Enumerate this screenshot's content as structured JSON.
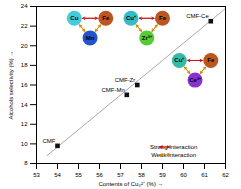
{
  "chart_data": {
    "type": "scatter",
    "xlabel": "Contents of Cu₀²⁺ (%)",
    "ylabel": "Alcohols selectivity (%)",
    "xlim": [
      53,
      62
    ],
    "ylim": [
      8,
      24
    ],
    "xticks": [
      53,
      54,
      55,
      56,
      57,
      58,
      59,
      60,
      61,
      62
    ],
    "yticks": [
      8,
      10,
      12,
      14,
      16,
      18,
      20,
      22,
      24
    ],
    "grid": false,
    "series": [
      {
        "type": "line",
        "color": "#aaaaaa",
        "x": [
          53.5,
          62.0
        ],
        "values": [
          8.8,
          23.8
        ]
      },
      {
        "type": "scatter",
        "color": "#111111",
        "marker": "square",
        "x": [
          54.0,
          57.3,
          57.8,
          61.3
        ],
        "values": [
          9.8,
          15.0,
          16.0,
          22.5
        ],
        "labels": [
          "CMF",
          "CMF-Mn",
          "CMF-Zr",
          "CMF-Ce"
        ]
      }
    ],
    "annotations": [
      {
        "balls": [
          {
            "text": "Cu",
            "x": 54.8,
            "y": 22.8,
            "color": "#44ccdd"
          },
          {
            "text": "Fe",
            "x": 56.3,
            "y": 22.8,
            "color": "#bb5522"
          },
          {
            "text": "Mn",
            "x": 55.55,
            "y": 20.8,
            "color": "#2255cc"
          }
        ]
      },
      {
        "balls": [
          {
            "text": "Cu⁺",
            "x": 57.5,
            "y": 22.8,
            "color": "#33bbcc"
          },
          {
            "text": "Fe",
            "x": 59.0,
            "y": 22.8,
            "color": "#bb5522"
          },
          {
            "text": "Zr³⁺",
            "x": 58.25,
            "y": 20.8,
            "color": "#55cc33"
          }
        ]
      },
      {
        "balls": [
          {
            "text": "Cu⁺",
            "x": 59.8,
            "y": 18.5,
            "color": "#33bbaa"
          },
          {
            "text": "Fe",
            "x": 61.3,
            "y": 18.5,
            "color": "#bb5522"
          },
          {
            "text": "Ce³⁺",
            "x": 60.55,
            "y": 16.5,
            "color": "#8833cc"
          }
        ]
      }
    ],
    "interactions": [
      {
        "name": "Strong Interaction",
        "color": "#cc1111"
      },
      {
        "name": "Weak Interaction",
        "color": "#cc8800"
      }
    ],
    "legend": "lower right"
  }
}
